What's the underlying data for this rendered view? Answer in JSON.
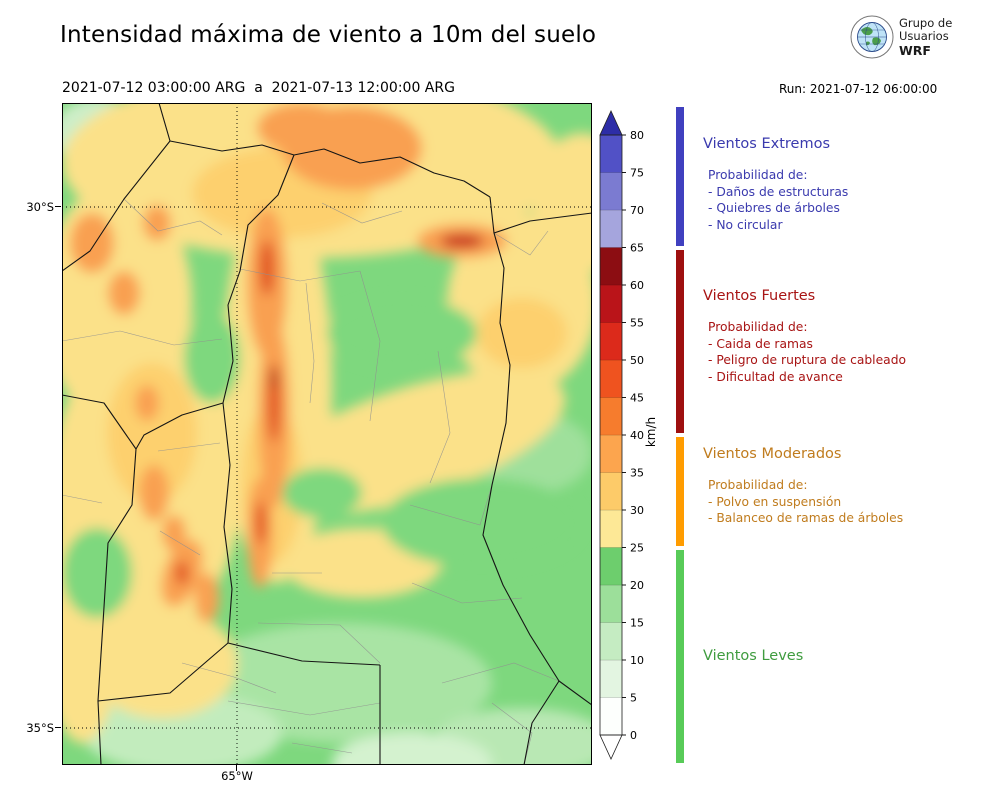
{
  "header": {
    "title": "Intensidad máxima de viento a 10m del suelo",
    "date_range": "2021-07-12 03:00:00 ARG  a  2021-07-13 12:00:00 ARG",
    "run_label": "Run: 2021-07-12 06:00:00",
    "logo": {
      "line1": "Grupo de",
      "line2": "Usuarios",
      "line3": "WRF"
    }
  },
  "map": {
    "lat_ticks": [
      {
        "label": "30°S"
      },
      {
        "label": "35°S"
      }
    ],
    "lon_ticks": [
      {
        "label": "65°W"
      }
    ]
  },
  "colorbar": {
    "unit": "km/h",
    "min": 0,
    "max": 80,
    "ticks": [
      0,
      5,
      10,
      15,
      20,
      25,
      30,
      35,
      40,
      45,
      50,
      55,
      60,
      65,
      70,
      75,
      80
    ],
    "over_color": "#2d2da7",
    "under_color": "#ffffff",
    "segments": [
      {
        "from": 0,
        "to": 5,
        "color": "#fdfffd"
      },
      {
        "from": 5,
        "to": 10,
        "color": "#e3f5e1"
      },
      {
        "from": 10,
        "to": 15,
        "color": "#c5ecc2"
      },
      {
        "from": 15,
        "to": 20,
        "color": "#9cdf9a"
      },
      {
        "from": 20,
        "to": 25,
        "color": "#6dce6d"
      },
      {
        "from": 25,
        "to": 30,
        "color": "#fde896"
      },
      {
        "from": 30,
        "to": 35,
        "color": "#fdcb69"
      },
      {
        "from": 35,
        "to": 40,
        "color": "#fca54e"
      },
      {
        "from": 40,
        "to": 45,
        "color": "#f67c2d"
      },
      {
        "from": 45,
        "to": 50,
        "color": "#ef531f"
      },
      {
        "from": 50,
        "to": 55,
        "color": "#dc2a1b"
      },
      {
        "from": 55,
        "to": 60,
        "color": "#ba1419"
      },
      {
        "from": 60,
        "to": 65,
        "color": "#8c0d12"
      },
      {
        "from": 65,
        "to": 70,
        "color": "#a5a5dd"
      },
      {
        "from": 70,
        "to": 75,
        "color": "#7b7bd1"
      },
      {
        "from": 75,
        "to": 80,
        "color": "#5151c6"
      }
    ]
  },
  "legend": {
    "categories": [
      {
        "id": "leves",
        "name": "Vientos Leves",
        "color": "#3f9c3f",
        "strip_color": "#58cb58",
        "range": [
          0,
          25
        ],
        "prob_label": "",
        "items": []
      },
      {
        "id": "moderados",
        "name": "Vientos Moderados",
        "color": "#c07c1e",
        "strip_color": "#ff9c00",
        "range": [
          25,
          40
        ],
        "prob_label": "Probabilidad de:",
        "items": [
          "- Polvo en suspensión",
          "- Balanceo de ramas de árboles"
        ]
      },
      {
        "id": "fuertes",
        "name": "Vientos Fuertes",
        "color": "#a81414",
        "strip_color": "#9e1010",
        "range": [
          40,
          65
        ],
        "prob_label": "Probabilidad de:",
        "items": [
          "- Caida de ramas",
          "- Peligro de ruptura de cableado",
          "- Dificultad de avance"
        ]
      },
      {
        "id": "extremos",
        "name": "Vientos Extremos",
        "color": "#3a3aae",
        "strip_color": "#4040bf",
        "range": [
          65,
          80
        ],
        "prob_label": "Probabilidad de:",
        "items": [
          "- Daños de estructuras",
          "- Quiebres de árboles",
          "- No circular"
        ]
      }
    ]
  },
  "chart_data": {
    "type": "heatmap",
    "title": "Intensidad máxima de viento a 10m del suelo",
    "subtitle": "2021-07-12 03:00:00 ARG  a  2021-07-13 12:00:00 ARG",
    "model_run": "Run: 2021-07-12 06:00:00",
    "colorbar_unit": "km/h",
    "colorbar_range": [
      0,
      80
    ],
    "colorbar_tick_step": 5,
    "lat_ticks": [
      "30°S",
      "35°S"
    ],
    "lon_ticks": [
      "65°W"
    ],
    "categories": [
      {
        "name": "Vientos Leves",
        "range_kmh": [
          0,
          25
        ]
      },
      {
        "name": "Vientos Moderados",
        "range_kmh": [
          25,
          40
        ]
      },
      {
        "name": "Vientos Fuertes",
        "range_kmh": [
          40,
          65
        ]
      },
      {
        "name": "Vientos Extremos",
        "range_kmh": [
          65,
          80
        ]
      }
    ]
  }
}
